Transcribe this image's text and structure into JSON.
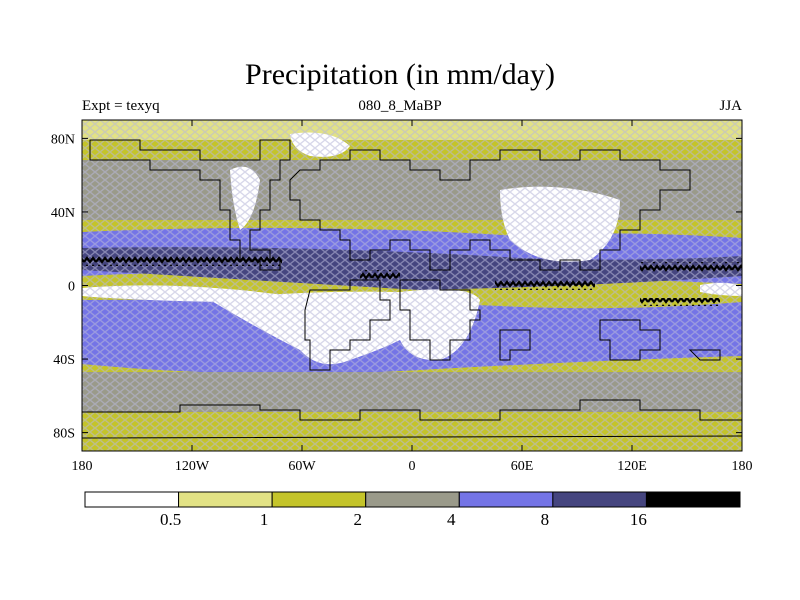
{
  "title": "Precipitation (in mm/day)",
  "subtitle_left": "Expt = texyq",
  "subtitle_center": "080_8_MaBP",
  "subtitle_right": "JJA",
  "y_ticks": [
    {
      "label": "80N",
      "lat": 80
    },
    {
      "label": "40N",
      "lat": 40
    },
    {
      "label": "0",
      "lat": 0
    },
    {
      "label": "40S",
      "lat": -40
    },
    {
      "label": "80S",
      "lat": -80
    }
  ],
  "x_ticks": [
    {
      "label": "180",
      "lon": -180
    },
    {
      "label": "120W",
      "lon": -120
    },
    {
      "label": "60W",
      "lon": -60
    },
    {
      "label": "0",
      "lon": 0
    },
    {
      "label": "60E",
      "lon": 60
    },
    {
      "label": "120E",
      "lon": 120
    },
    {
      "label": "180",
      "lon": 180
    }
  ],
  "colorbar": {
    "colors": [
      "#ffffff",
      "#e2e285",
      "#c4c42a",
      "#9a9a8a",
      "#7474e6",
      "#45457f",
      "#000000"
    ],
    "labels": [
      "0.5",
      "1",
      "2",
      "4",
      "8",
      "16"
    ]
  },
  "colors": {
    "background_band": "#9a9a8a",
    "ocean_pattern": "#c4c42a",
    "coastline": "#000000"
  }
}
